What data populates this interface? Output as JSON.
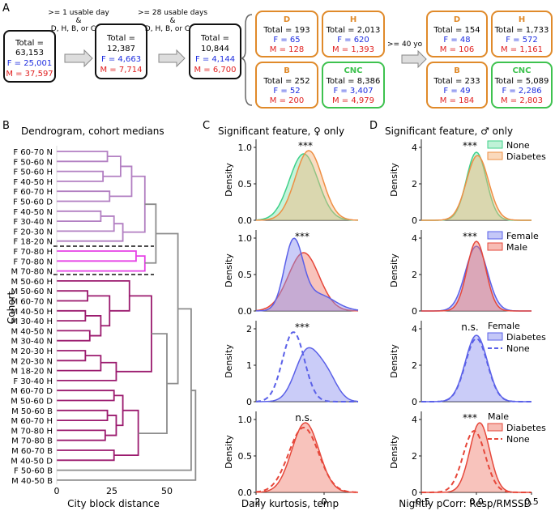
{
  "panels": {
    "a": "A",
    "b": "B",
    "c": "C",
    "d": "D"
  },
  "flow": {
    "steps": [
      "Total =",
      "F =",
      "M ="
    ],
    "arrow1": ">= 1 usable day",
    "amp1": "&",
    "arrow1b": "D, H, B, or CNC",
    "arrow2": ">= 28 usable days",
    "amp2": "&",
    "arrow2b": "D, H, B, or CNC",
    "arrow3": ">= 40 yo",
    "boxes": [
      {
        "total": "Total =",
        "totalv": "63,153",
        "f": "F = 25,001",
        "m": "M = 37,597"
      },
      {
        "total": "Total =",
        "totalv": "12,387",
        "f": "F = 4,663",
        "m": "M = 7,714"
      },
      {
        "total": "Total =",
        "totalv": "10,844",
        "f": "F = 4,144",
        "m": "M = 6,700"
      }
    ],
    "groups1": [
      {
        "name": "D",
        "total": "Total = 193",
        "f": "F = 65",
        "m": "M = 128"
      },
      {
        "name": "H",
        "total": "Total = 2,013",
        "f": "F = 620",
        "m": "M = 1,393"
      },
      {
        "name": "B",
        "total": "Total = 252",
        "f": "F = 52",
        "m": "M = 200"
      },
      {
        "name": "CNC",
        "total": "Total = 8,386",
        "f": "F = 3,407",
        "m": "M = 4,979"
      }
    ],
    "groups2": [
      {
        "name": "D",
        "total": "Total = 154",
        "f": "F = 48",
        "m": "M = 106"
      },
      {
        "name": "H",
        "total": "Total = 1,733",
        "f": "F = 572",
        "m": "M = 1,161"
      },
      {
        "name": "B",
        "total": "Total = 233",
        "f": "F = 49",
        "m": "M = 184"
      },
      {
        "name": "CNC",
        "total": "Total = 5,089",
        "f": "F = 2,286",
        "m": "M = 2,803"
      }
    ]
  },
  "dendrogram": {
    "title": "Dendrogram, cohort medians",
    "ylabel": "Cohort",
    "xlabel": "City block distance",
    "ticks": [
      "0",
      "25",
      "50"
    ],
    "labels": [
      "F 60-70 N",
      "F 50-60 N",
      "F 50-60 H",
      "F 40-50 H",
      "F 60-70 H",
      "F 50-60 D",
      "F 40-50 N",
      "F 30-40 N",
      "F 20-30 N",
      "F 18-20 N",
      "F 70-80 H",
      "F 70-80 N",
      "M 70-80 N",
      "M 50-60 H",
      "M 50-60 N",
      "M 60-70 N",
      "M 40-50 H",
      "M 30-40 H",
      "M 40-50 N",
      "M 30-40 N",
      "M 20-30 H",
      "M 20-30 N",
      "M 18-20 N",
      "F 30-40 H",
      "M 60-70 D",
      "M 50-60 D",
      "M 50-60 B",
      "M 60-70 H",
      "M 70-80 H",
      "M 70-80 B",
      "M 60-70 B",
      "M 40-50 D",
      "F 50-60 B",
      "M 40-50 B"
    ]
  },
  "chart_data": [
    {
      "type": "area",
      "panel": "C1",
      "title": "Significant feature, ♀ only",
      "ylabel": "Density",
      "sig": "***",
      "series": [
        {
          "name": "None",
          "peak": -0.6
        },
        {
          "name": "Diabetes",
          "peak": -0.45
        }
      ],
      "xlim": [
        -2,
        1
      ],
      "yticks": [
        "0.0",
        "0.5",
        "1.0"
      ]
    },
    {
      "type": "area",
      "panel": "C2",
      "ylabel": "Density",
      "sig": "***",
      "series": [
        {
          "name": "Female",
          "peak": -0.9
        },
        {
          "name": "Male",
          "peak": -0.6
        }
      ],
      "yticks": [
        "0.0",
        "0.5",
        "1.0"
      ]
    },
    {
      "type": "area",
      "panel": "C3",
      "ylabel": "Density",
      "sig": "***",
      "series": [
        {
          "name": "Diabetes",
          "peak": -0.5
        },
        {
          "name": "None",
          "peak": -0.9
        }
      ],
      "yticks": [
        "0",
        "1",
        "2"
      ]
    },
    {
      "type": "area",
      "panel": "C4",
      "ylabel": "Density",
      "sig": "n.s.",
      "xlabel": "Daily kurtosis, temp",
      "series": [
        {
          "name": "Diabetes",
          "peak": -0.55
        },
        {
          "name": "None",
          "peak": -0.6
        }
      ],
      "xticks": [
        "-2",
        "0"
      ],
      "yticks": [
        "0.0",
        "0.5",
        "1.0"
      ]
    },
    {
      "type": "area",
      "panel": "D1",
      "title": "Significant feature, ♂ only",
      "ylabel": "Density",
      "sig": "***",
      "series": [
        {
          "name": "None",
          "peak": 0.0
        },
        {
          "name": "Diabetes",
          "peak": 0.01
        }
      ],
      "legend": [
        "None",
        "Diabetes"
      ],
      "yticks": [
        "0",
        "2",
        "4"
      ]
    },
    {
      "type": "area",
      "panel": "D2",
      "ylabel": "Density",
      "sig": "***",
      "series": [
        {
          "name": "Female",
          "peak": 0.0
        },
        {
          "name": "Male",
          "peak": 0.0
        }
      ],
      "legend": [
        "Female",
        "Male"
      ],
      "yticks": [
        "0",
        "2",
        "4"
      ]
    },
    {
      "type": "area",
      "panel": "D3",
      "ylabel": "Density",
      "sig": "n.s.",
      "series": [
        {
          "name": "Diabetes",
          "peak": 0.0
        },
        {
          "name": "None",
          "peak": 0.0
        }
      ],
      "legend_title": "Female",
      "legend": [
        "Diabetes",
        "None"
      ],
      "yticks": [
        "0",
        "2",
        "4"
      ]
    },
    {
      "type": "area",
      "panel": "D4",
      "ylabel": "Density",
      "sig": "***",
      "xlabel": "Nightly pCorr: Resp/RMSSD",
      "series": [
        {
          "name": "Diabetes",
          "peak": 0.03
        },
        {
          "name": "None",
          "peak": -0.02
        }
      ],
      "legend_title": "Male",
      "legend": [
        "Diabetes",
        "None"
      ],
      "xticks": [
        "-0.5",
        "0.0",
        "0.5"
      ],
      "yticks": [
        "0",
        "2",
        "4"
      ]
    }
  ],
  "colors": {
    "female": "#1f2fe0",
    "male": "#e01f1f",
    "d": "#e08a2a",
    "cnc": "#3ec24f",
    "fpurple": "#b27fc2",
    "fpink": "#e642e6",
    "mmagenta": "#9b1a6e",
    "gray": "#8c8c8c",
    "none_green": "#7fe6b0",
    "diab_orange": "#f5b37a",
    "female_blue": "#8a8ff0",
    "male_red": "#f07a6a"
  }
}
